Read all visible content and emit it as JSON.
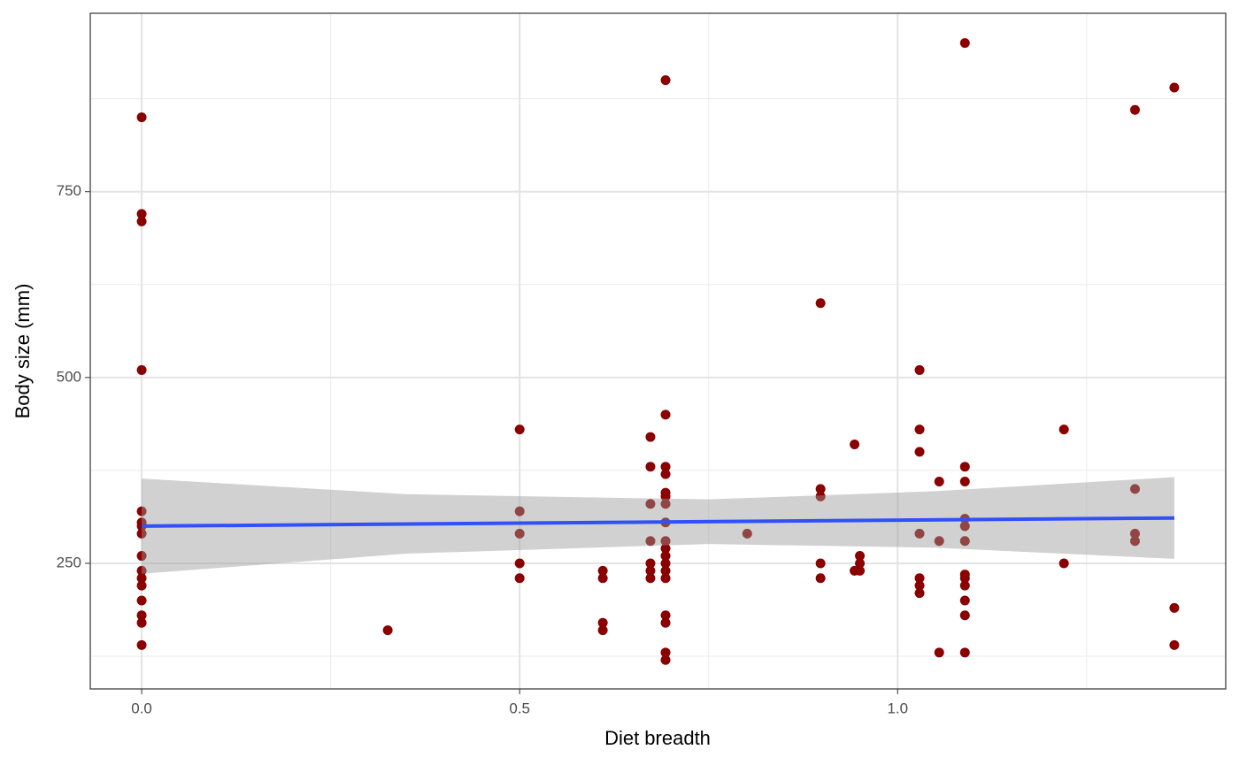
{
  "chart_data": {
    "type": "scatter",
    "xlabel": "Diet breadth",
    "ylabel": "Body size (mm)",
    "xlim": [
      -0.068,
      1.434
    ],
    "ylim": [
      81,
      990
    ],
    "xticks": [
      {
        "value": 0,
        "label": "0.0"
      },
      0.5,
      {
        "value": 1,
        "label": "1.0"
      }
    ],
    "yticks": [
      250,
      500,
      750
    ],
    "xminorticks": [
      0.25,
      0.75,
      1.25
    ],
    "yminorticks": [
      125,
      375,
      625,
      875
    ],
    "grid": true,
    "points": {
      "color": "#8b0000",
      "x": [
        0,
        0,
        0,
        0,
        0,
        0,
        0,
        0,
        0,
        0,
        0,
        0,
        0,
        0,
        0,
        0,
        0.3255,
        0.5,
        0.5,
        0.5,
        0.5,
        0.5,
        0.61,
        0.61,
        0.61,
        0.61,
        0.673,
        0.673,
        0.673,
        0.673,
        0.673,
        0.673,
        0.673,
        0.693,
        0.693,
        0.693,
        0.693,
        0.693,
        0.693,
        0.693,
        0.693,
        0.693,
        0.693,
        0.693,
        0.693,
        0.693,
        0.693,
        0.693,
        0.693,
        0.693,
        0.693,
        0.801,
        0.898,
        0.898,
        0.898,
        0.898,
        0.898,
        0.943,
        0.943,
        0.95,
        0.95,
        0.95,
        1.029,
        1.029,
        1.029,
        1.029,
        1.029,
        1.029,
        1.029,
        1.055,
        1.055,
        1.055,
        1.089,
        1.089,
        1.089,
        1.089,
        1.089,
        1.089,
        1.089,
        1.089,
        1.089,
        1.089,
        1.089,
        1.089,
        1.22,
        1.22,
        1.314,
        1.314,
        1.314,
        1.314,
        1.366,
        1.366,
        1.366
      ],
      "y": [
        850,
        720,
        710,
        510,
        320,
        305,
        300,
        290,
        260,
        240,
        230,
        220,
        200,
        180,
        170,
        140,
        160,
        430,
        320,
        290,
        250,
        230,
        240,
        230,
        170,
        160,
        420,
        380,
        330,
        280,
        250,
        240,
        230,
        900,
        450,
        380,
        370,
        345,
        340,
        330,
        305,
        280,
        270,
        260,
        250,
        240,
        230,
        180,
        170,
        130,
        120,
        290,
        600,
        350,
        340,
        250,
        230,
        410,
        240,
        260,
        250,
        240,
        510,
        430,
        400,
        290,
        230,
        220,
        210,
        360,
        280,
        130,
        950,
        380,
        360,
        310,
        300,
        280,
        235,
        230,
        220,
        200,
        180,
        130,
        430,
        250,
        860,
        350,
        290,
        280,
        890,
        190,
        140
      ]
    },
    "band": {
      "color": "#999999",
      "x": [
        0,
        0.35,
        0.75,
        1.05,
        1.366
      ],
      "lower": [
        236,
        263,
        276,
        271,
        256
      ],
      "upper": [
        364,
        343,
        336,
        347,
        366
      ]
    },
    "fit": {
      "color": "#3050f8",
      "x": [
        0,
        1.366
      ],
      "y": [
        300,
        311
      ]
    }
  }
}
